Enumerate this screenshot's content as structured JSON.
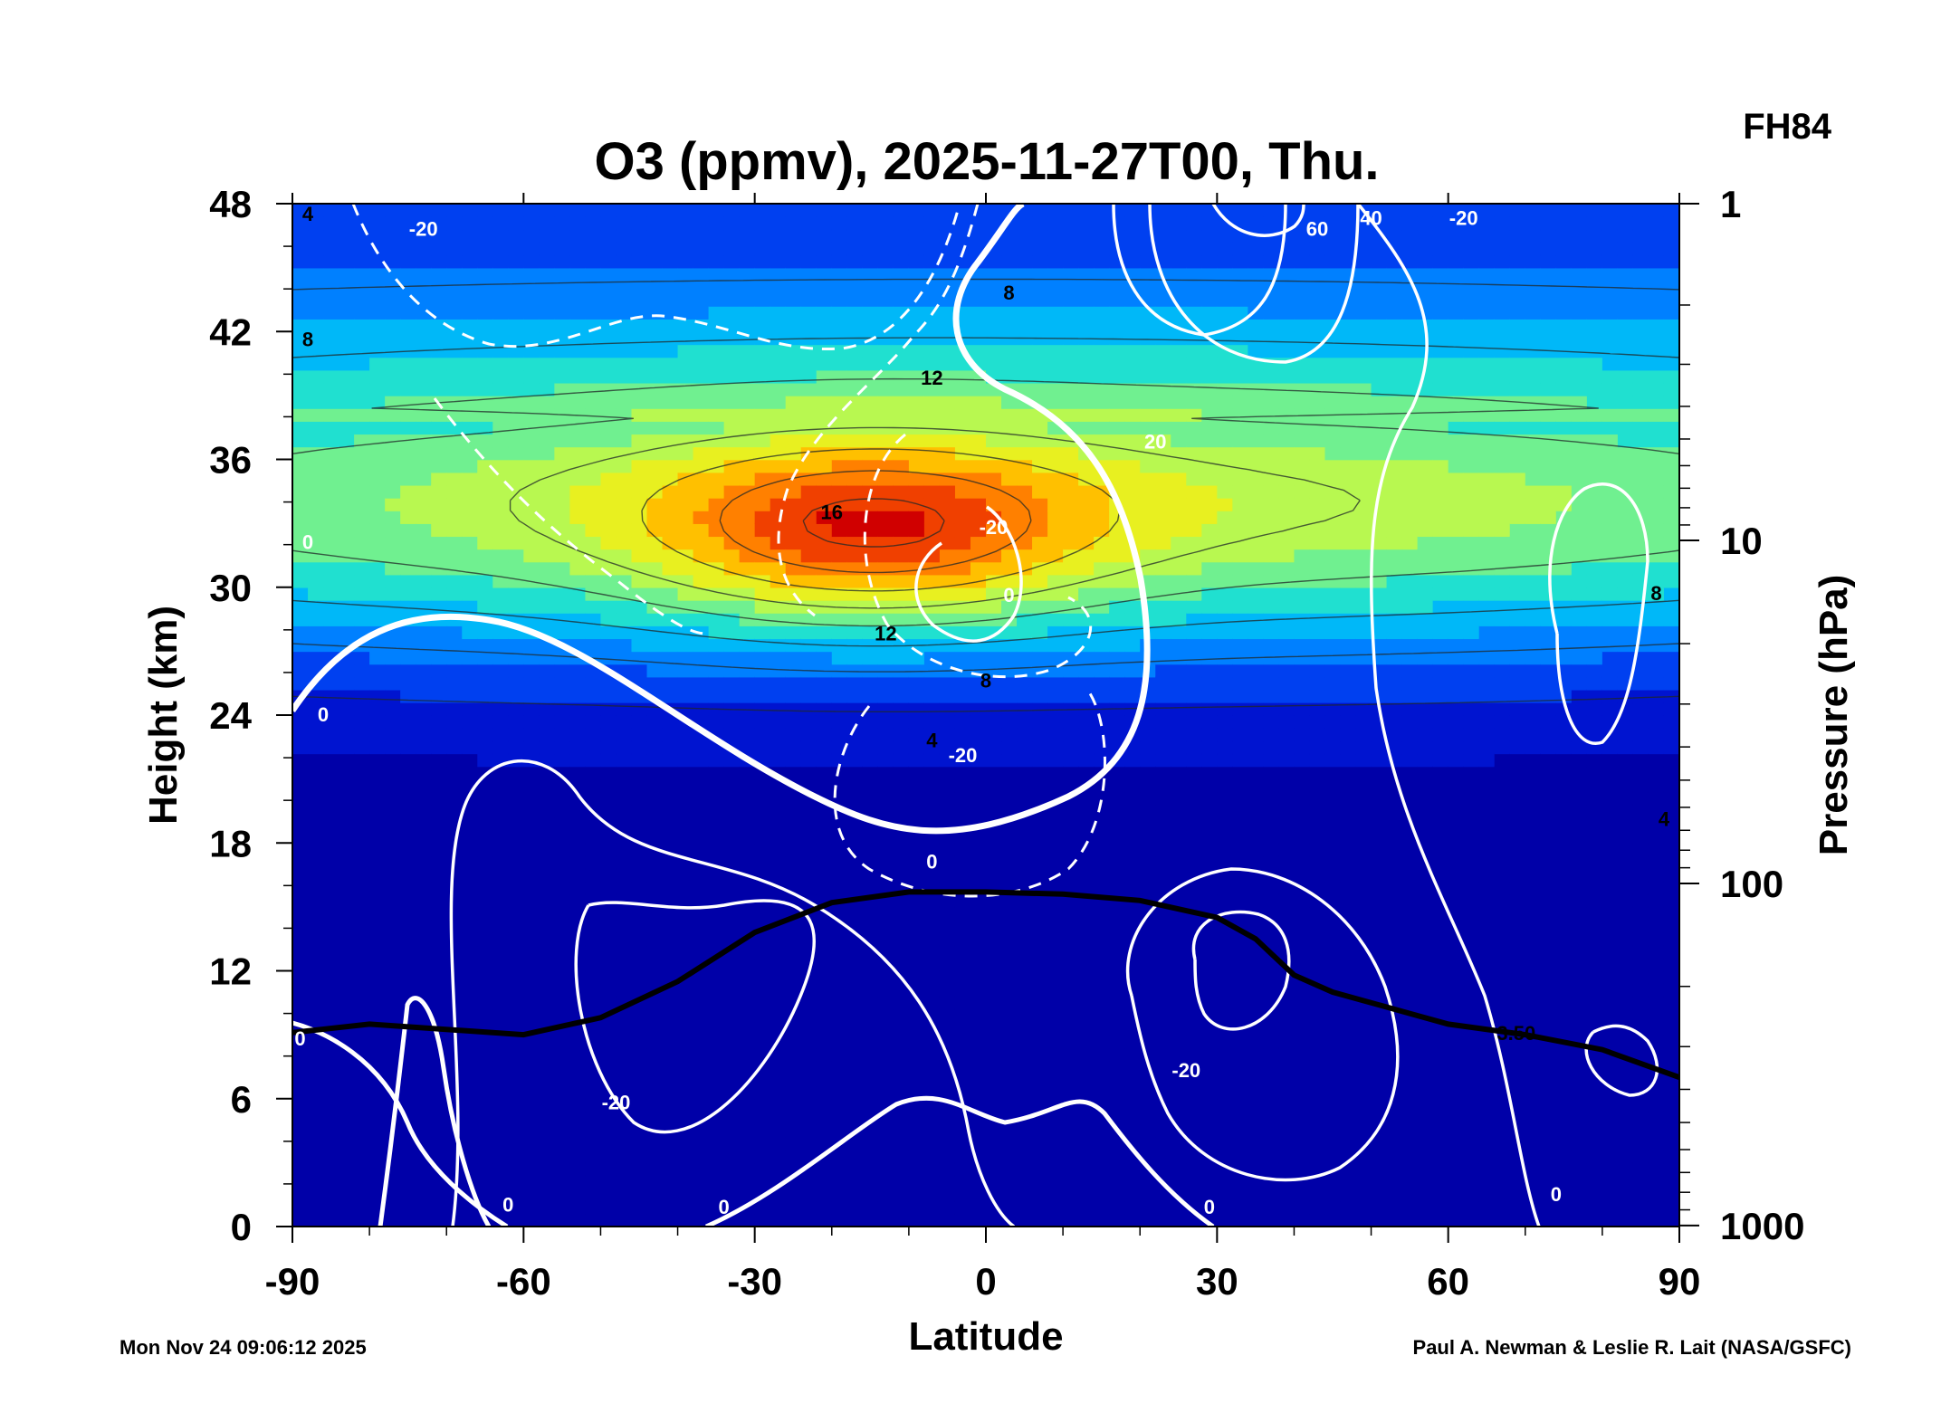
{
  "chart_data": {
    "type": "heatmap",
    "title": "O3 (ppmv), 2025-11-27T00, Thu.",
    "forecast_label": "FH84",
    "xlabel": "Latitude",
    "ylabel": "Height (km)",
    "y2label": "Pressure (hPa)",
    "xlim": [
      -90,
      90
    ],
    "ylim": [
      0,
      48
    ],
    "x_ticks": [
      -90,
      -60,
      -30,
      0,
      30,
      60,
      90
    ],
    "y_ticks": [
      0,
      6,
      12,
      18,
      24,
      30,
      36,
      42,
      48
    ],
    "pressure_ticks": [
      {
        "label": "1",
        "height_km": 48
      },
      {
        "label": "10",
        "height_km": 32.2
      },
      {
        "label": "100",
        "height_km": 16.1
      },
      {
        "label": "1000",
        "height_km": 0.05
      }
    ],
    "colormap": [
      "#0000a8",
      "#0014d0",
      "#0040f0",
      "#0080ff",
      "#00b8f8",
      "#20e0d0",
      "#70f090",
      "#b8f850",
      "#e8f020",
      "#ffc000",
      "#ff8000",
      "#f04000",
      "#d00000"
    ],
    "ozone_field": {
      "units": "ppmv",
      "shading_max": 17,
      "maximum": {
        "lat": -15,
        "height_km": 32.5,
        "value": 16.5
      },
      "profile_peak_height_km": 34,
      "contour_labels": [
        {
          "text": "4",
          "lat": -88,
          "height_km": 47.2
        },
        {
          "text": "8",
          "lat": -88,
          "height_km": 41.3
        },
        {
          "text": "8",
          "lat": 3,
          "height_km": 43.5
        },
        {
          "text": "12",
          "lat": -7,
          "height_km": 39.5
        },
        {
          "text": "16",
          "lat": -20,
          "height_km": 33.2
        },
        {
          "text": "12",
          "lat": -13,
          "height_km": 27.5
        },
        {
          "text": "8",
          "lat": 0,
          "height_km": 25.3
        },
        {
          "text": "4",
          "lat": -7,
          "height_km": 22.5
        },
        {
          "text": "8",
          "lat": 87,
          "height_km": 29.4
        },
        {
          "text": "4",
          "lat": 88,
          "height_km": 18.8
        }
      ]
    },
    "zonal_wind_labels": [
      {
        "text": "-20",
        "lat": -73,
        "height_km": 46.5
      },
      {
        "text": "60",
        "lat": 43,
        "height_km": 46.5
      },
      {
        "text": "40",
        "lat": 50,
        "height_km": 47
      },
      {
        "text": "-20",
        "lat": 62,
        "height_km": 47
      },
      {
        "text": "20",
        "lat": 22,
        "height_km": 36.5
      },
      {
        "text": "-20",
        "lat": 1,
        "height_km": 32.5
      },
      {
        "text": "0",
        "lat": 3,
        "height_km": 29.3
      },
      {
        "text": "0",
        "lat": -88,
        "height_km": 31.8
      },
      {
        "text": "0",
        "lat": -86,
        "height_km": 23.7
      },
      {
        "text": "-20",
        "lat": -3,
        "height_km": 21.8
      },
      {
        "text": "0",
        "lat": -7,
        "height_km": 16.8
      },
      {
        "text": "-20",
        "lat": -48,
        "height_km": 5.5
      },
      {
        "text": "-20",
        "lat": 26,
        "height_km": 7
      },
      {
        "text": "0",
        "lat": -89,
        "height_km": 8.5
      },
      {
        "text": "0",
        "lat": -62,
        "height_km": 0.7
      },
      {
        "text": "0",
        "lat": -34,
        "height_km": 0.6
      },
      {
        "text": "0",
        "lat": 29,
        "height_km": 0.6
      },
      {
        "text": "0",
        "lat": 74,
        "height_km": 1.2
      }
    ],
    "tropopause": {
      "label": "3.50",
      "points": [
        [
          -90,
          9.1
        ],
        [
          -80,
          9.5
        ],
        [
          -60,
          9.0
        ],
        [
          -50,
          9.8
        ],
        [
          -40,
          11.5
        ],
        [
          -30,
          13.8
        ],
        [
          -20,
          15.2
        ],
        [
          -10,
          15.7
        ],
        [
          0,
          15.7
        ],
        [
          10,
          15.6
        ],
        [
          20,
          15.3
        ],
        [
          30,
          14.5
        ],
        [
          35,
          13.5
        ],
        [
          40,
          11.8
        ],
        [
          45,
          11.0
        ],
        [
          55,
          10.0
        ],
        [
          60,
          9.5
        ],
        [
          70,
          9.0
        ],
        [
          80,
          8.3
        ],
        [
          90,
          7.0
        ]
      ]
    }
  },
  "footer": {
    "timestamp": "Mon Nov 24 09:06:12 2025",
    "credit": "Paul A. Newman & Leslie R. Lait (NASA/GSFC)"
  }
}
